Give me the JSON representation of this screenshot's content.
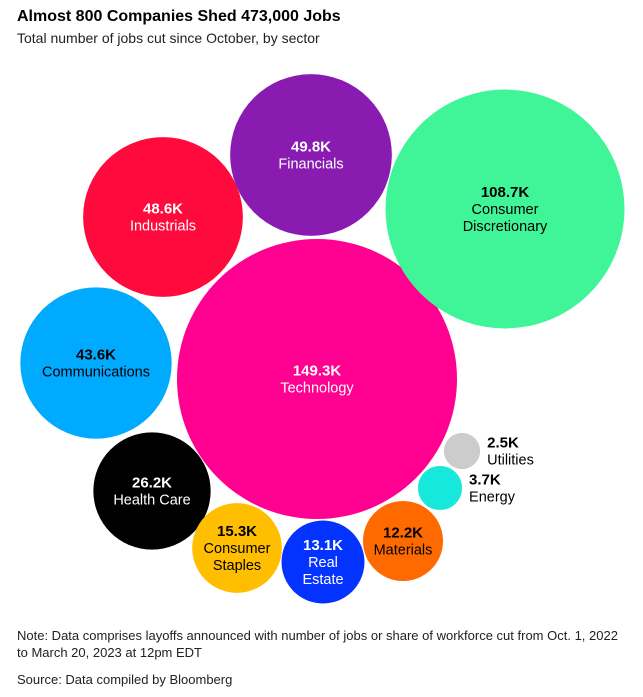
{
  "title": "Almost 800 Companies Shed 473,000 Jobs",
  "subtitle": "Total number of jobs cut since October, by sector",
  "note": "Note: Data comprises layoffs announced with number of jobs or share of workforce cut from Oct. 1, 2022 to March 20, 2023 at 12pm EDT",
  "source": "Source: Data compiled by Bloomberg",
  "chart_data": {
    "type": "bubble",
    "unit": "jobs (thousands)",
    "series": [
      {
        "name": "Technology",
        "value": 149.3,
        "label": "149.3K",
        "color": "#ff0090",
        "text_color": "#ffffff"
      },
      {
        "name": "Consumer Discretionary",
        "value": 108.7,
        "label": "108.7K",
        "color": "#40f598",
        "text_color": "#000000"
      },
      {
        "name": "Financials",
        "value": 49.8,
        "label": "49.8K",
        "color": "#8a1bb0",
        "text_color": "#ffffff"
      },
      {
        "name": "Industrials",
        "value": 48.6,
        "label": "48.6K",
        "color": "#ff0a3c",
        "text_color": "#ffffff"
      },
      {
        "name": "Communications",
        "value": 43.6,
        "label": "43.6K",
        "color": "#00aaff",
        "text_color": "#000000"
      },
      {
        "name": "Health Care",
        "value": 26.2,
        "label": "26.2K",
        "color": "#000000",
        "text_color": "#ffffff"
      },
      {
        "name": "Consumer Staples",
        "value": 15.3,
        "label": "15.3K",
        "color": "#ffbf00",
        "text_color": "#000000"
      },
      {
        "name": "Real Estate",
        "value": 13.1,
        "label": "13.1K",
        "color": "#0433ff",
        "text_color": "#ffffff"
      },
      {
        "name": "Materials",
        "value": 12.2,
        "label": "12.2K",
        "color": "#ff6a00",
        "text_color": "#000000"
      },
      {
        "name": "Energy",
        "value": 3.7,
        "label": "3.7K",
        "color": "#16e8dc",
        "text_color": "#000000"
      },
      {
        "name": "Utilities",
        "value": 2.5,
        "label": "2.5K",
        "color": "#cccccc",
        "text_color": "#000000"
      }
    ]
  }
}
